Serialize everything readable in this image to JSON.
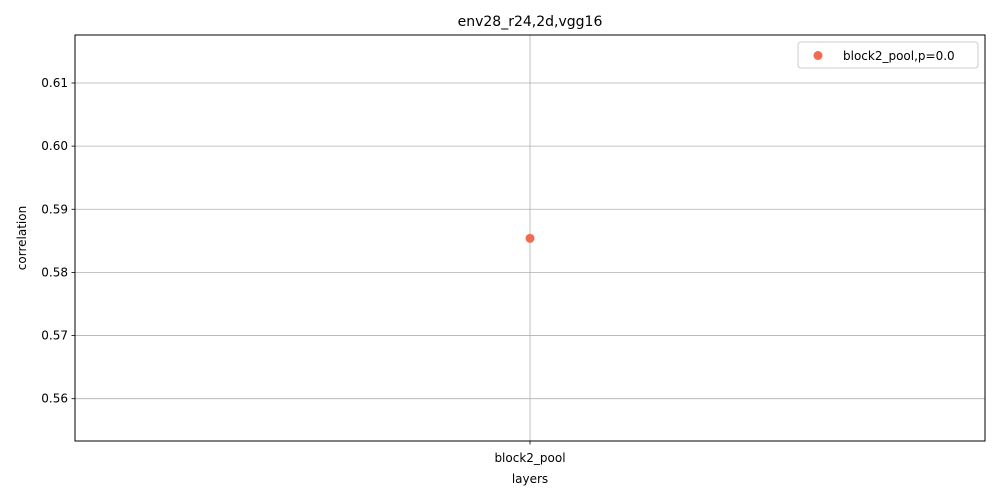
{
  "chart_data": {
    "type": "scatter",
    "title": "env28_r24,2d,vgg16",
    "xlabel": "layers",
    "ylabel": "correlation",
    "categories": [
      "block2_pool"
    ],
    "series": [
      {
        "name": "block2_pool,p=0.0",
        "color": "#f26a4f",
        "points": [
          {
            "x": "block2_pool",
            "y": 0.5854
          }
        ]
      }
    ],
    "ylim": [
      0.5533,
      0.6176
    ],
    "yticks": [
      0.56,
      0.57,
      0.58,
      0.59,
      0.6,
      0.61
    ],
    "ytick_labels": [
      "0.56",
      "0.57",
      "0.58",
      "0.59",
      "0.60",
      "0.61"
    ],
    "grid": true,
    "legend_position": "top-right"
  }
}
